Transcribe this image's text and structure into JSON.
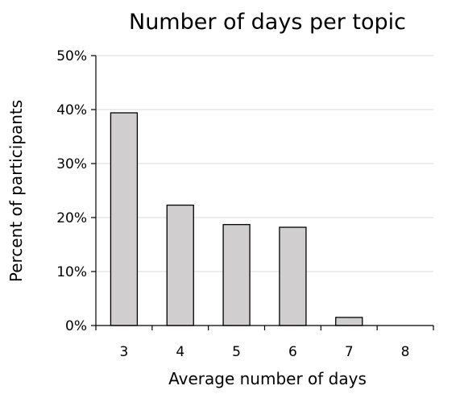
{
  "chart_data": {
    "type": "bar",
    "title": "Number of days per topic",
    "xlabel": "Average number of days",
    "ylabel": "Percent of participants",
    "categories": [
      "3",
      "4",
      "5",
      "6",
      "7",
      "8"
    ],
    "values": [
      39.4,
      22.3,
      18.7,
      18.2,
      1.5,
      0
    ],
    "ylim": [
      0,
      50
    ],
    "yticks": [
      "0%",
      "10%",
      "20%",
      "30%",
      "40%",
      "50%"
    ],
    "grid": true,
    "bar_color": "#d0cece"
  }
}
